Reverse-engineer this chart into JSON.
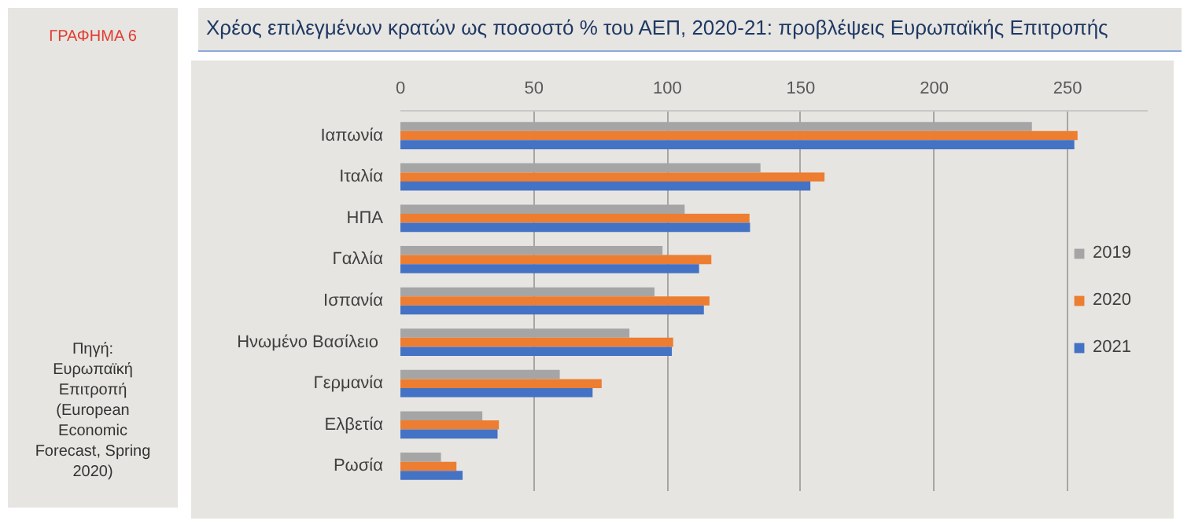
{
  "chart_data": {
    "type": "bar",
    "orientation": "horizontal",
    "title": "Χρέος επιλεγμένων κρατών ως ποσοστό % του ΑΕΠ, 2020-21: προβλέψεις Ευρωπαϊκής Επιτροπής",
    "annotations": [
      "ΓΡΑΦΗΜΑ 6",
      "Πηγή:\nΕυρωπαϊκή\nΕπιτροπή\n(European\nEconomic\nForecast, Spring\n2020)"
    ],
    "categories": [
      "Ιαπωνία",
      "Ιταλία",
      "ΗΠΑ",
      "Γαλλία",
      "Ισπανία",
      "Ηνωμένο  Βασίλειο",
      "Γερμανία",
      "Ελβετία",
      "Ρωσία"
    ],
    "series": [
      {
        "name": "2019",
        "color": "#a5a5a5",
        "values": [
          236.6,
          134.9,
          106.5,
          98.2,
          95.2,
          85.8,
          59.7,
          30.7,
          15.2
        ]
      },
      {
        "name": "2020",
        "color": "#ed7d31",
        "values": [
          253.7,
          158.9,
          130.8,
          116.5,
          115.8,
          102.2,
          75.4,
          36.9,
          21.0
        ]
      },
      {
        "name": "2021",
        "color": "#4472c4",
        "values": [
          252.5,
          153.6,
          131.0,
          111.9,
          113.7,
          101.7,
          72.0,
          36.4,
          23.3
        ]
      }
    ],
    "xlim": [
      0,
      280
    ],
    "xticks": [
      0,
      50,
      100,
      150,
      200,
      250
    ],
    "grid": "x",
    "legend": "right"
  }
}
